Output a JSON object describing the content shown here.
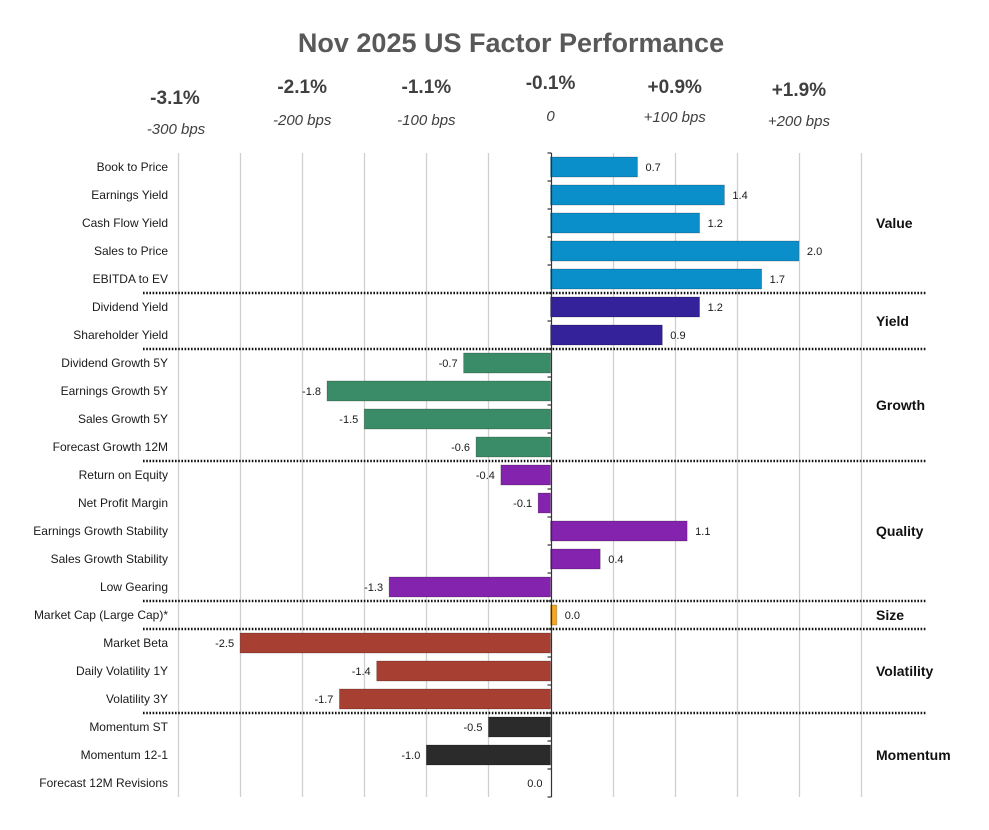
{
  "chart_data": {
    "type": "bar",
    "orientation": "horizontal",
    "title": "Nov 2025 US Factor Performance",
    "xlabel": "",
    "ylabel": "",
    "xlim": [
      -3.0,
      2.5
    ],
    "grid": true,
    "grid_step": 0.5,
    "header_ticks": [
      {
        "value": -3.0,
        "pct": "-3.1%",
        "bps": "-300 bps"
      },
      {
        "value": -2.0,
        "pct": "-2.1%",
        "bps": "-200 bps"
      },
      {
        "value": -1.0,
        "pct": "-1.1%",
        "bps": "-100 bps"
      },
      {
        "value": 0.0,
        "pct": "-0.1%",
        "bps": "0"
      },
      {
        "value": 1.0,
        "pct": "+0.9%",
        "bps": "+100 bps"
      },
      {
        "value": 2.0,
        "pct": "+1.9%",
        "bps": "+200 bps"
      }
    ],
    "groups": [
      {
        "name": "Value",
        "color": "#0B8FCB",
        "factors": [
          {
            "label": "Book to Price",
            "value": 0.7
          },
          {
            "label": "Earnings Yield",
            "value": 1.4
          },
          {
            "label": "Cash Flow Yield",
            "value": 1.2
          },
          {
            "label": "Sales to Price",
            "value": 2.0
          },
          {
            "label": "EBITDA to EV",
            "value": 1.7
          }
        ]
      },
      {
        "name": "Yield",
        "color": "#33229A",
        "factors": [
          {
            "label": "Dividend Yield",
            "value": 1.2
          },
          {
            "label": "Shareholder Yield",
            "value": 0.9
          }
        ]
      },
      {
        "name": "Growth",
        "color": "#3A8C68",
        "factors": [
          {
            "label": "Dividend Growth 5Y",
            "value": -0.7
          },
          {
            "label": "Earnings Growth 5Y",
            "value": -1.8
          },
          {
            "label": "Sales Growth 5Y",
            "value": -1.5
          },
          {
            "label": "Forecast Growth 12M",
            "value": -0.6
          }
        ]
      },
      {
        "name": "Quality",
        "color": "#8323AE",
        "factors": [
          {
            "label": "Return on Equity",
            "value": -0.4
          },
          {
            "label": "Net Profit Margin",
            "value": -0.1
          },
          {
            "label": "Earnings Growth Stability",
            "value": 1.1
          },
          {
            "label": "Sales Growth Stability",
            "value": 0.4
          },
          {
            "label": "Low Gearing",
            "value": -1.3
          }
        ]
      },
      {
        "name": "Size",
        "color": "#F4A722",
        "factors": [
          {
            "label": "Market Cap (Large Cap)*",
            "value": 0.0,
            "min_visible": 0.05
          }
        ]
      },
      {
        "name": "Volatility",
        "color": "#A83F33",
        "factors": [
          {
            "label": "Market Beta",
            "value": -2.5
          },
          {
            "label": "Daily Volatility 1Y",
            "value": -1.4
          },
          {
            "label": "Volatility 3Y",
            "value": -1.7
          }
        ]
      },
      {
        "name": "Momentum",
        "color": "#2B2B2B",
        "factors": [
          {
            "label": "Momentum ST",
            "value": -0.5
          },
          {
            "label": "Momentum 12-1",
            "value": -1.0
          },
          {
            "label": "Forecast 12M Revisions",
            "value": 0.0
          }
        ]
      }
    ]
  }
}
